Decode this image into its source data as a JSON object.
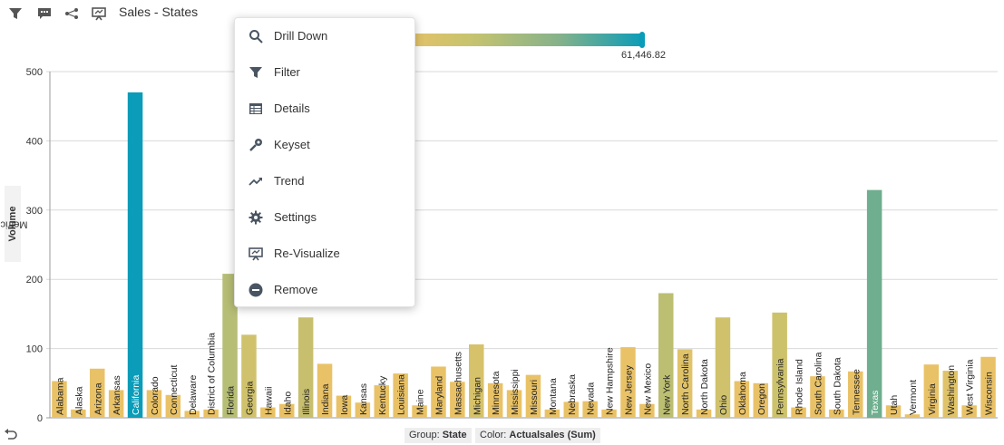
{
  "toolbar": {
    "title": "Sales - States",
    "icons": [
      "filter-icon",
      "comment-icon",
      "share-icon",
      "visualize-icon"
    ]
  },
  "legend": {
    "max_label": "61,446.82",
    "colors": [
      "#e9c267",
      "#c6c36f",
      "#86b28a",
      "#0a9cb8"
    ]
  },
  "axis": {
    "metric_prefix": "Metric:",
    "metric_name": "Volume"
  },
  "footer": {
    "group_label": "Group:",
    "group_value": "State",
    "color_label": "Color:",
    "color_value": "Actualsales (Sum)"
  },
  "menu": {
    "items": [
      {
        "label": "Drill Down",
        "icon": "search-icon"
      },
      {
        "label": "Filter",
        "icon": "filter-icon"
      },
      {
        "label": "Details",
        "icon": "table-icon"
      },
      {
        "label": "Keyset",
        "icon": "key-icon"
      },
      {
        "label": "Trend",
        "icon": "trend-icon"
      },
      {
        "label": "Settings",
        "icon": "gear-icon"
      },
      {
        "label": "Re-Visualize",
        "icon": "visualize-icon"
      },
      {
        "label": "Remove",
        "icon": "remove-icon"
      }
    ]
  },
  "chart_data": {
    "type": "bar",
    "ylabel": "Volume",
    "ylim": [
      0,
      500
    ],
    "yticks": [
      0,
      100,
      200,
      300,
      400,
      500
    ],
    "grid": true,
    "categories": [
      "Alabama",
      "Alaska",
      "Arizona",
      "Arkansas",
      "California",
      "Colorado",
      "Connecticut",
      "Delaware",
      "District of Columbia",
      "Florida",
      "Georgia",
      "Hawaii",
      "Idaho",
      "Illinois",
      "Indiana",
      "Iowa",
      "Kansas",
      "Kentucky",
      "Louisiana",
      "Maine",
      "Maryland",
      "Massachusetts",
      "Michigan",
      "Minnesota",
      "Mississippi",
      "Missouri",
      "Montana",
      "Nebraska",
      "Nevada",
      "New Hampshire",
      "New Jersey",
      "New Mexico",
      "New York",
      "North Carolina",
      "North Dakota",
      "Ohio",
      "Oklahoma",
      "Oregon",
      "Pennsylvania",
      "Rhode Island",
      "South Carolina",
      "South Dakota",
      "Tennessee",
      "Texas",
      "Utah",
      "Vermont",
      "Virginia",
      "Washington",
      "West Virginia",
      "Wisconsin"
    ],
    "values": [
      53,
      12,
      71,
      40,
      470,
      40,
      33,
      10,
      12,
      208,
      120,
      15,
      20,
      145,
      78,
      32,
      22,
      47,
      64,
      18,
      74,
      52,
      106,
      50,
      40,
      62,
      12,
      23,
      24,
      12,
      102,
      20,
      180,
      99,
      12,
      145,
      53,
      50,
      152,
      15,
      60,
      12,
      67,
      329,
      18,
      5,
      77,
      68,
      18,
      88
    ],
    "colors": [
      "#e9c267",
      "#e9c267",
      "#e9c267",
      "#e9c267",
      "#0a9cb8",
      "#e9c267",
      "#e9c267",
      "#e9c267",
      "#e9c267",
      "#b6bd75",
      "#d0c26c",
      "#e9c267",
      "#e9c267",
      "#c8bf6e",
      "#e9c267",
      "#e9c267",
      "#e9c267",
      "#e9c267",
      "#e9c267",
      "#e9c267",
      "#e9c267",
      "#e9c267",
      "#d6c26a",
      "#e9c267",
      "#e9c267",
      "#e9c267",
      "#e9c267",
      "#e9c267",
      "#e9c267",
      "#e9c267",
      "#e9c267",
      "#e9c267",
      "#bcbe72",
      "#e0c369",
      "#e9c267",
      "#d0c26c",
      "#e9c267",
      "#e9c267",
      "#cdc26c",
      "#e9c267",
      "#e9c267",
      "#e9c267",
      "#e9c267",
      "#6fae8e",
      "#e9c267",
      "#e9c267",
      "#e9c267",
      "#e0c369",
      "#e9c267",
      "#e9c267"
    ]
  }
}
